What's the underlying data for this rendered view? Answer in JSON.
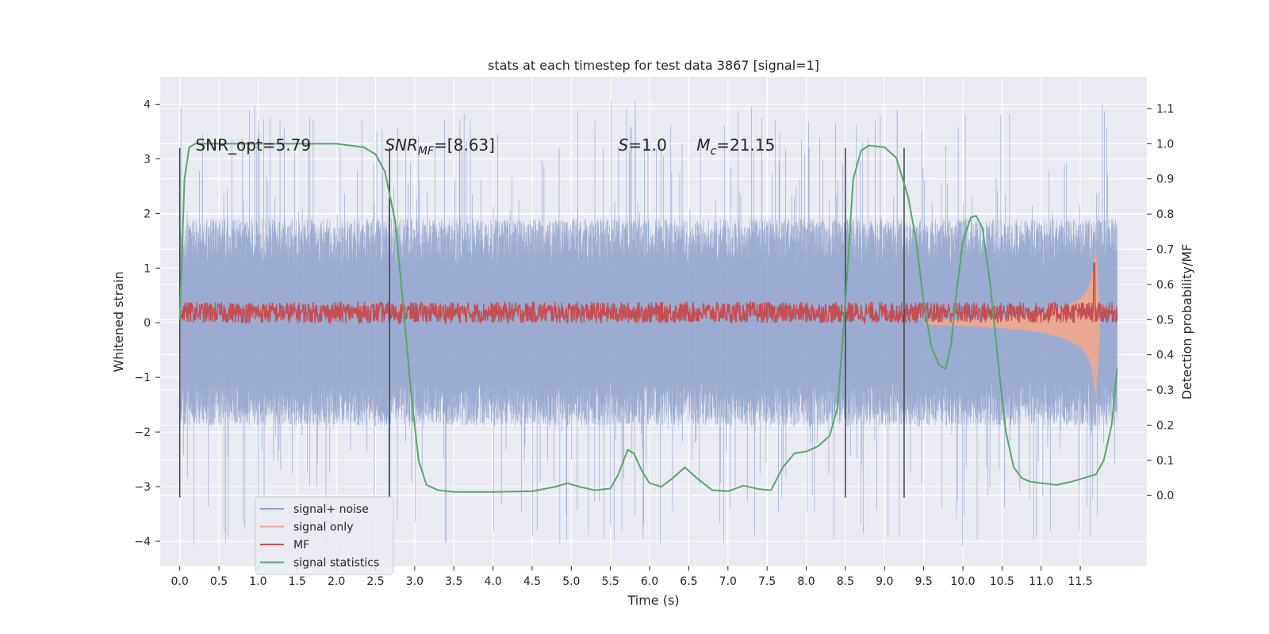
{
  "chart_data": {
    "type": "line",
    "title": "stats at each timestep for test data 3867 [signal=1]",
    "xlabel": "Time (s)",
    "ylabel_left": "Whitened strain",
    "ylabel_right": "Detection probability/MF",
    "xlim": [
      -0.25,
      12.35
    ],
    "ylim_left": [
      -4.45,
      4.5
    ],
    "ylim_right": [
      -0.2,
      1.19
    ],
    "x_ticks": [
      0.0,
      0.5,
      1.0,
      1.5,
      2.0,
      2.5,
      3.0,
      3.5,
      4.0,
      4.5,
      5.0,
      5.5,
      6.0,
      6.5,
      7.0,
      7.5,
      8.0,
      8.5,
      9.0,
      9.5,
      10.0,
      10.5,
      11.0,
      11.5
    ],
    "x_tick_labels": [
      "0.0",
      "0.5",
      "1.0",
      "1.5",
      "2.0",
      "2.5",
      "3.0",
      "3.5",
      "4.0",
      "4.5",
      "5.0",
      "5.5",
      "6.0",
      "6.5",
      "7.0",
      "7.5",
      "8.0",
      "8.5",
      "9.0",
      "9.5",
      "10.0",
      "10.5",
      "11.0",
      "11.5"
    ],
    "y_left_ticks": [
      -4,
      -3,
      -2,
      -1,
      0,
      1,
      2,
      3,
      4
    ],
    "y_left_tick_labels": [
      "−4",
      "−3",
      "−2",
      "−1",
      "0",
      "1",
      "2",
      "3",
      "4"
    ],
    "y_right_ticks": [
      0.0,
      0.1,
      0.2,
      0.3,
      0.4,
      0.5,
      0.6,
      0.7,
      0.8,
      0.9,
      1.0,
      1.1
    ],
    "y_right_tick_labels": [
      "0.0",
      "0.1",
      "0.2",
      "0.3",
      "0.4",
      "0.5",
      "0.6",
      "0.7",
      "0.8",
      "0.9",
      "1.0",
      "1.1"
    ],
    "grid": true,
    "annotations": [
      {
        "text": "SNR_opt=5.79",
        "x": 0.2,
        "y": 3.25
      },
      {
        "text": "SNR_MF=[8.63]",
        "x": 2.62,
        "y": 3.25
      },
      {
        "text": "S=1.0",
        "x": 5.6,
        "y": 3.25
      },
      {
        "text": "M_c=21.15",
        "x": 6.6,
        "y": 3.25
      }
    ],
    "vertical_lines_x": [
      0.0,
      2.68,
      8.5,
      9.25
    ],
    "vertical_lines_yrange": [
      -3.2,
      3.2
    ],
    "series": [
      {
        "name": "signal+ noise",
        "color": "#8da0cb",
        "axis": "left",
        "x_range": [
          0.0,
          11.97
        ],
        "typical_envelope": [
          -1.9,
          1.9
        ],
        "max_envelope": [
          -4.1,
          4.1
        ]
      },
      {
        "name": "signal only",
        "color": "#f0a98c",
        "axis": "left",
        "x": [
          0.0,
          9.5,
          10.0,
          10.5,
          11.0,
          11.3,
          11.5,
          11.6,
          11.65,
          11.68,
          11.7,
          11.75
        ],
        "amplitude": [
          0.02,
          0.03,
          0.06,
          0.1,
          0.18,
          0.3,
          0.45,
          0.65,
          0.9,
          1.2,
          1.4,
          0.2
        ]
      },
      {
        "name": "MF",
        "color": "#c44e52",
        "axis": "right",
        "x_range": [
          0.0,
          11.97
        ],
        "baseline": 0.52,
        "jitter": 0.03,
        "peak": {
          "x": 11.68,
          "y": 0.66
        }
      },
      {
        "name": "signal statistics",
        "color": "#55a868",
        "axis": "right",
        "x": [
          0.0,
          0.06,
          0.12,
          0.2,
          0.4,
          1.0,
          2.0,
          2.35,
          2.5,
          2.62,
          2.75,
          2.85,
          2.95,
          3.05,
          3.15,
          3.3,
          3.5,
          4.0,
          4.5,
          4.8,
          4.95,
          5.1,
          5.3,
          5.5,
          5.6,
          5.72,
          5.8,
          5.9,
          6.0,
          6.15,
          6.3,
          6.45,
          6.6,
          6.8,
          7.0,
          7.1,
          7.2,
          7.4,
          7.55,
          7.7,
          7.85,
          8.0,
          8.15,
          8.3,
          8.4,
          8.5,
          8.6,
          8.7,
          8.8,
          9.0,
          9.15,
          9.3,
          9.4,
          9.5,
          9.6,
          9.7,
          9.78,
          9.85,
          9.92,
          10.0,
          10.1,
          10.17,
          10.25,
          10.35,
          10.45,
          10.55,
          10.65,
          10.75,
          10.85,
          11.0,
          11.2,
          11.4,
          11.55,
          11.7,
          11.8,
          11.9,
          11.97
        ],
        "y": [
          0.5,
          0.9,
          0.99,
          1.0,
          1.0,
          1.0,
          1.0,
          0.99,
          0.97,
          0.92,
          0.78,
          0.55,
          0.3,
          0.1,
          0.03,
          0.015,
          0.01,
          0.01,
          0.012,
          0.025,
          0.035,
          0.025,
          0.015,
          0.02,
          0.06,
          0.13,
          0.12,
          0.07,
          0.035,
          0.025,
          0.05,
          0.08,
          0.05,
          0.015,
          0.012,
          0.02,
          0.028,
          0.018,
          0.015,
          0.08,
          0.12,
          0.125,
          0.14,
          0.17,
          0.25,
          0.55,
          0.9,
          0.98,
          0.995,
          0.99,
          0.96,
          0.85,
          0.73,
          0.55,
          0.42,
          0.37,
          0.36,
          0.43,
          0.58,
          0.72,
          0.79,
          0.795,
          0.76,
          0.6,
          0.38,
          0.18,
          0.08,
          0.05,
          0.04,
          0.035,
          0.03,
          0.04,
          0.05,
          0.06,
          0.1,
          0.2,
          0.36
        ]
      }
    ],
    "legend": {
      "position": "lower-left",
      "entries": [
        {
          "label": "signal+ noise",
          "color": "#8da0cb"
        },
        {
          "label": "signal only",
          "color": "#f0a98c"
        },
        {
          "label": "MF",
          "color": "#c44e52"
        },
        {
          "label": "signal statistics",
          "color": "#55a868"
        }
      ]
    }
  }
}
